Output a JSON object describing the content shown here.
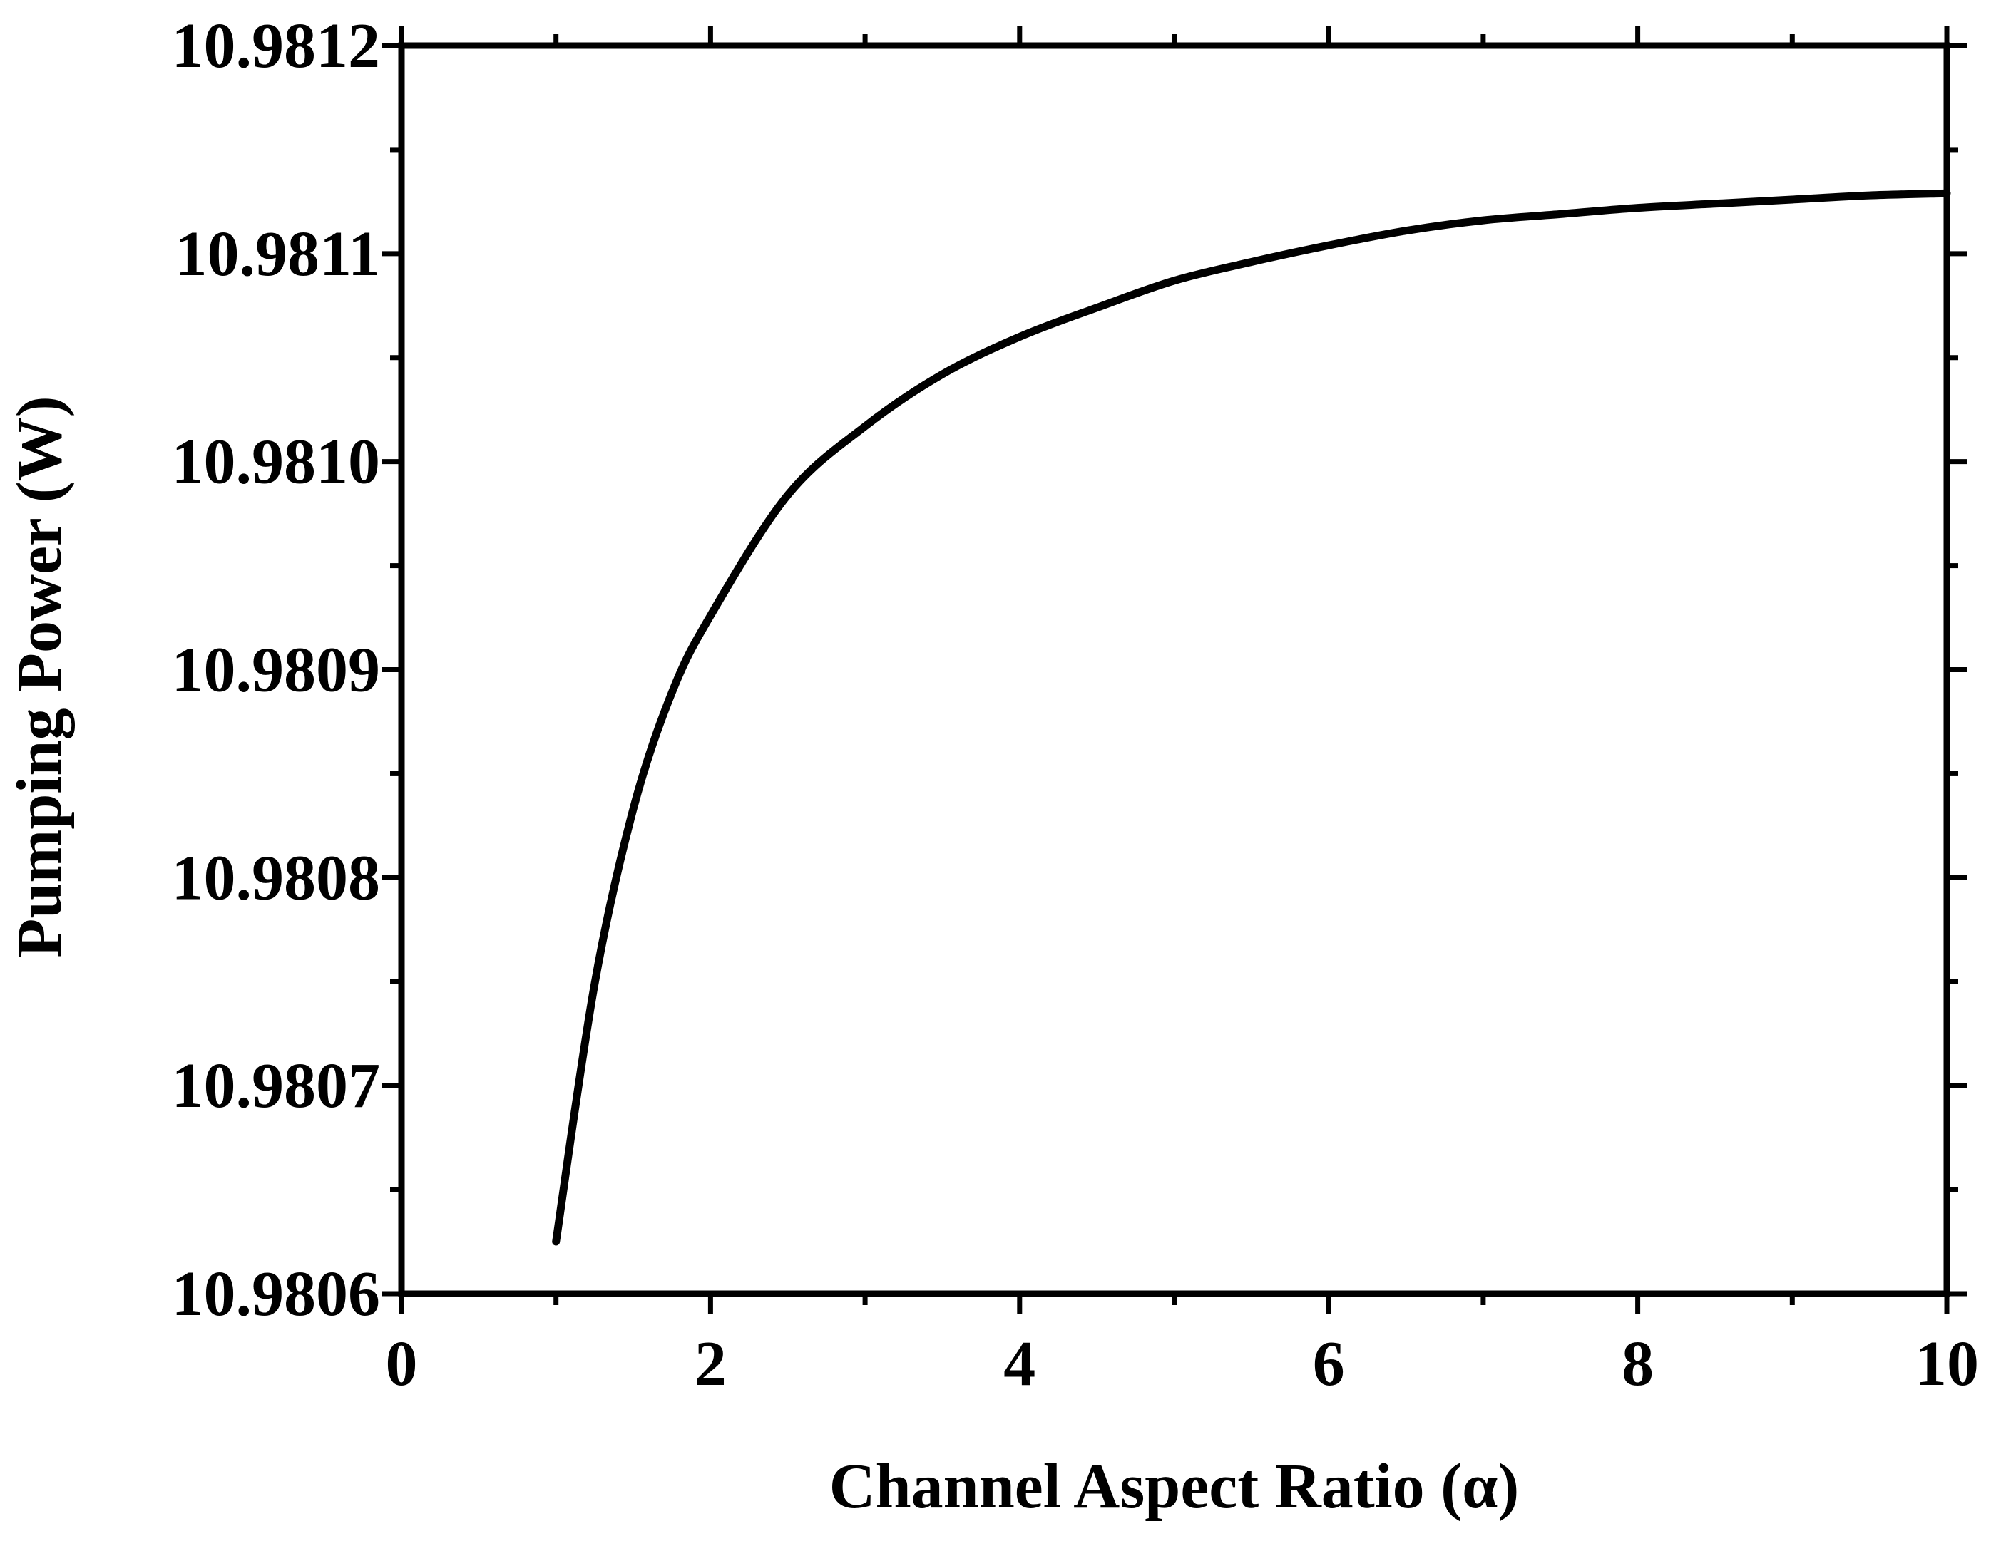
{
  "chart_data": {
    "type": "line",
    "title": "",
    "xlabel": "Channel Aspect Ratio (α)",
    "ylabel": "Pumping Power (W)",
    "xlim": [
      0,
      10
    ],
    "ylim": [
      10.9806,
      10.9812
    ],
    "x_ticks": [
      "0",
      "2",
      "4",
      "6",
      "8",
      "10"
    ],
    "y_ticks": [
      "10.9806",
      "10.9807",
      "10.9808",
      "10.9809",
      "10.9810",
      "10.9811",
      "10.9812"
    ],
    "grid": false,
    "legend": "none",
    "series": [
      {
        "color": "#000000",
        "x": [
          1.0,
          1.25,
          1.5,
          1.75,
          2.0,
          2.5,
          3.0,
          3.5,
          4.0,
          4.5,
          5.0,
          5.5,
          6.0,
          6.5,
          7.0,
          7.5,
          8.0,
          8.5,
          9.0,
          9.5,
          10.0
        ],
        "y": [
          10.980625,
          10.980749,
          10.980833,
          10.980889,
          10.980926,
          10.980984,
          10.981017,
          10.981042,
          10.98106,
          10.981074,
          10.981087,
          10.981096,
          10.981104,
          10.981111,
          10.981116,
          10.981119,
          10.981122,
          10.981124,
          10.981126,
          10.981128,
          10.981129
        ]
      }
    ]
  }
}
